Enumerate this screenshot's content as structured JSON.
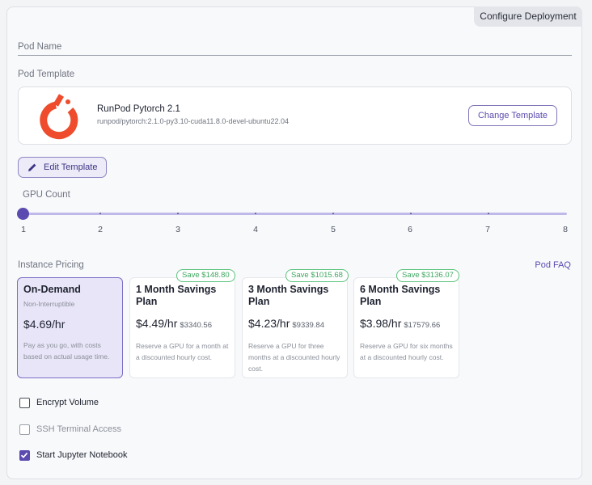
{
  "header": {
    "tab_label": "Configure Deployment"
  },
  "pod_name": {
    "label": "Pod Name"
  },
  "pod_template": {
    "label": "Pod Template",
    "name": "RunPod Pytorch 2.1",
    "image": "runpod/pytorch:2.1.0-py3.10-cuda11.8.0-devel-ubuntu22.04",
    "change_label": "Change Template",
    "logo_icon": "pytorch-logo"
  },
  "edit_template": {
    "label": "Edit Template",
    "icon": "pencil-icon"
  },
  "gpu_count": {
    "label": "GPU Count",
    "value": 1,
    "ticks": [
      "1",
      "2",
      "3",
      "4",
      "5",
      "6",
      "7",
      "8"
    ]
  },
  "pricing": {
    "label": "Instance Pricing",
    "faq_label": "Pod FAQ",
    "options": [
      {
        "title": "On-Demand",
        "subtitle": "Non-Interruptible",
        "price": "$4.69/hr",
        "total": "",
        "description": "Pay as you go, with costs based on actual usage time.",
        "badge": "",
        "selected": true
      },
      {
        "title": "1 Month Savings Plan",
        "subtitle": "",
        "price": "$4.49/hr",
        "total": "$3340.56",
        "description": "Reserve a GPU for a month at a discounted hourly cost.",
        "badge": "Save $148.80",
        "selected": false
      },
      {
        "title": "3 Month Savings Plan",
        "subtitle": "",
        "price": "$4.23/hr",
        "total": "$9339.84",
        "description": "Reserve a GPU for three months at a discounted hourly cost.",
        "badge": "Save $1015.68",
        "selected": false
      },
      {
        "title": "6 Month Savings Plan",
        "subtitle": "",
        "price": "$3.98/hr",
        "total": "$17579.66",
        "description": "Reserve a GPU for six months at a discounted hourly cost.",
        "badge": "Save $3136.07",
        "selected": false
      }
    ]
  },
  "options": {
    "encrypt_volume": {
      "label": "Encrypt Volume",
      "checked": false,
      "disabled": false
    },
    "ssh_access": {
      "label": "SSH Terminal Access",
      "checked": false,
      "disabled": true
    },
    "jupyter": {
      "label": "Start Jupyter Notebook",
      "checked": true,
      "disabled": false
    }
  },
  "colors": {
    "accent": "#5b4bb0",
    "save_green": "#3ea760",
    "logo_orange": "#ee4c2c"
  }
}
